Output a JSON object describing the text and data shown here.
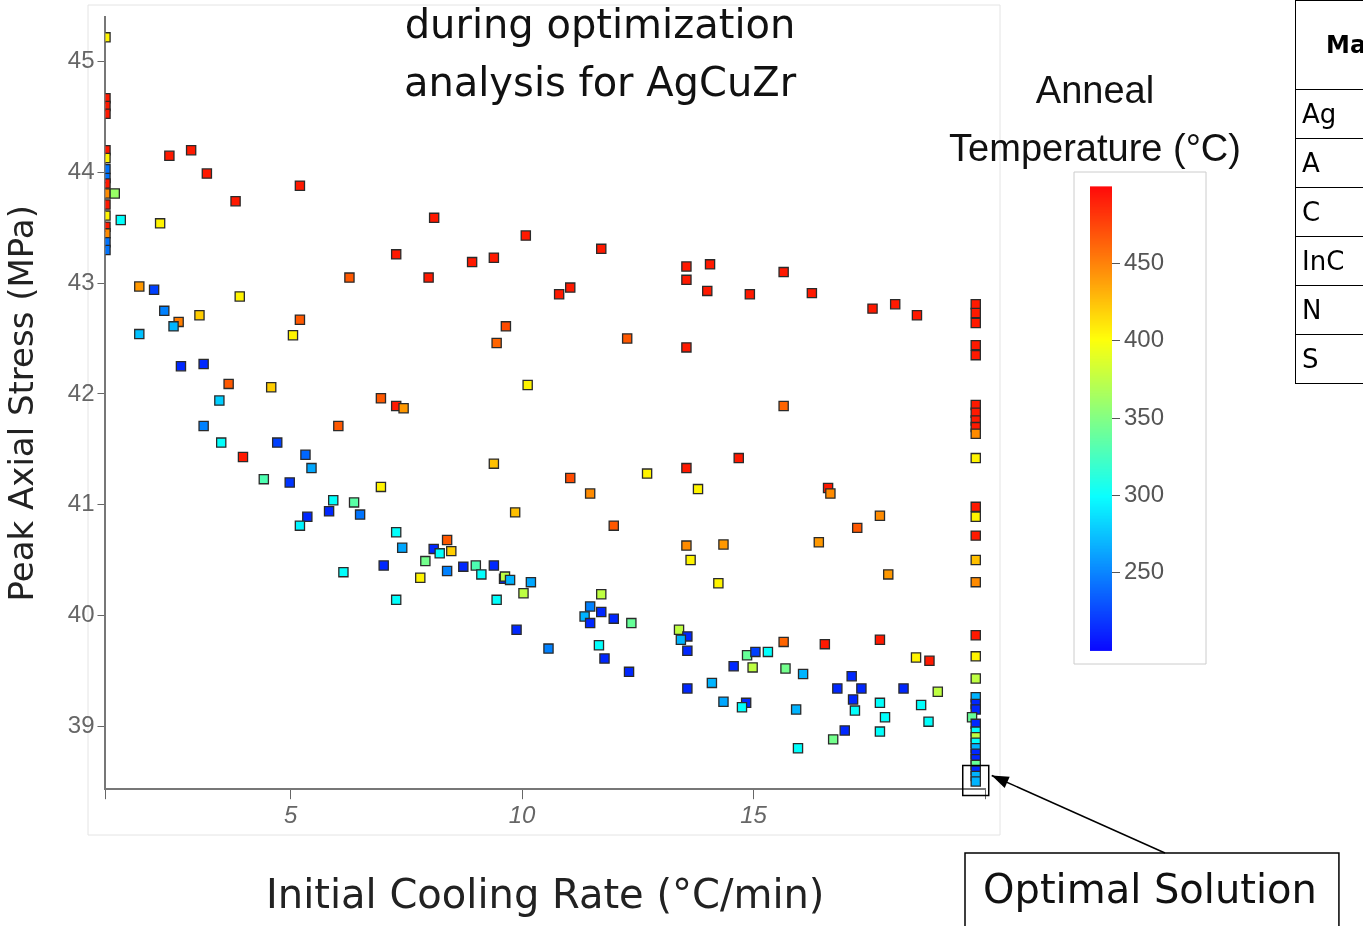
{
  "chart_data": {
    "type": "scatter",
    "title": "during optimization analysis for AgCuZr",
    "xlabel": "Initial Cooling Rate (°C/min)",
    "ylabel": "Peak Axial Stress (MPa)",
    "clabel": "Anneal Temperature (°C)",
    "marker": "square",
    "grid": false,
    "xlim": [
      1,
      20
    ],
    "xticks": [
      {
        "value": 1,
        "label": null
      },
      5,
      10,
      15,
      {
        "value": 20,
        "label": null
      }
    ],
    "ylim": [
      38.43,
      45.4
    ],
    "yticks": [
      39,
      40,
      41,
      42,
      43,
      44,
      45
    ],
    "clim": [
      200,
      500
    ],
    "cticks": [
      250,
      300,
      350,
      400,
      450
    ],
    "x": [
      1,
      1,
      1,
      1,
      1,
      1,
      1,
      1,
      1,
      1,
      1.2,
      1,
      1,
      1.33,
      1,
      1,
      1,
      1,
      2.38,
      2.85,
      3.19,
      3.81,
      5.2,
      2.18,
      6.27,
      1.73,
      2.05,
      3.9,
      2.27,
      2.58,
      2.47,
      3.03,
      5.2,
      5.05,
      1.73,
      2.63,
      3.12,
      3.66,
      4.58,
      3.46,
      6.95,
      3.12,
      3.5,
      3.97,
      4.71,
      6.03,
      5.32,
      5.45,
      4.42,
      4.98,
      6.95,
      5.92,
      6.37,
      5.83,
      6.5,
      5.36,
      5.2,
      6.14,
      7.01,
      8.1,
      10.08,
      11.71,
      7.28,
      8.92,
      9.39,
      7.98,
      11.04,
      10.8,
      13.55,
      13.55,
      14.0,
      14.06,
      9.65,
      9.45,
      12.27,
      13.55,
      10.12,
      7.28,
      7.44,
      9.39,
      11.04,
      12.7,
      13.55,
      13.8,
      14.92,
      15.65,
      16.26,
      17.57,
      18.06,
      18.53,
      15.65,
      14.68,
      16.61,
      16.66,
      17.73,
      17.24,
      16.41,
      14.35,
      14.24,
      17.91,
      13.55,
      13.64,
      11.47,
      11.98,
      9.85,
      15.65,
      16.54,
      17.73,
      18.51,
      18.8,
      14.86,
      15.04,
      15.31,
      14.57,
      14.98,
      15.69,
      16.07,
      14.1,
      17.12,
      16.81,
      17.33,
      18.24,
      18.98,
      14.35,
      14.84,
      14.75,
      17.15,
      17.19,
      17.73,
      18.62,
      17.84,
      18.78,
      15.92,
      16.97,
      16.72,
      17.73,
      15.96,
      7.28,
      7.41,
      8.38,
      8.09,
      8.22,
      8.47,
      7.91,
      7.8,
      8.38,
      8.73,
      9.0,
      9.12,
      9.39,
      9.61,
      9.63,
      9.74,
      10.19,
      10.03,
      7.28,
      9.45,
      9.88,
      10.57,
      11.71,
      11.47,
      11.71,
      11.35,
      11.47,
      11.98,
      12.36,
      11.66,
      11.78,
      12.31,
      13.39,
      13.57,
      13.43,
      13.57,
      13.57,
      19.8,
      19.8,
      19.8,
      19.8,
      19.8,
      19.8,
      19.8,
      19.8,
      19.8,
      19.8,
      19.8,
      19.8,
      19.8,
      19.8,
      19.8,
      19.8,
      19.8,
      19.8,
      19.8,
      19.8,
      19.8,
      19.8,
      19.72,
      19.8,
      19.8,
      19.8,
      19.8,
      19.8,
      19.8,
      19.8,
      19.8,
      19.8,
      19.8,
      19.8
    ],
    "values": [
      45.22,
      44.67,
      44.6,
      44.53,
      44.2,
      44.13,
      44.03,
      43.95,
      43.9,
      43.81,
      43.81,
      43.71,
      43.61,
      43.57,
      43.51,
      43.45,
      43.37,
      43.3,
      44.15,
      44.2,
      43.99,
      43.74,
      43.88,
      43.54,
      43.05,
      42.97,
      42.94,
      42.88,
      42.75,
      42.65,
      42.61,
      42.71,
      42.67,
      42.53,
      42.54,
      42.25,
      42.27,
      42.09,
      42.06,
      41.94,
      41.96,
      41.71,
      41.56,
      41.43,
      41.56,
      41.71,
      41.45,
      41.33,
      41.23,
      41.2,
      41.16,
      41.04,
      41.02,
      40.94,
      40.91,
      40.89,
      40.81,
      40.39,
      40.45,
      43.59,
      43.43,
      43.31,
      43.26,
      43.19,
      43.23,
      43.05,
      42.96,
      42.9,
      43.15,
      43.03,
      42.93,
      43.17,
      42.61,
      42.46,
      42.5,
      42.42,
      42.08,
      41.89,
      41.87,
      41.37,
      41.24,
      41.28,
      41.33,
      41.14,
      42.9,
      43.1,
      42.91,
      42.77,
      42.81,
      42.71,
      41.89,
      41.42,
      41.15,
      41.1,
      40.9,
      40.79,
      40.66,
      40.64,
      40.29,
      40.37,
      40.63,
      40.5,
      41.1,
      40.81,
      40.93,
      39.76,
      39.74,
      39.78,
      39.62,
      39.59,
      39.64,
      39.67,
      39.67,
      39.54,
      39.53,
      39.52,
      39.47,
      39.39,
      39.45,
      39.34,
      39.34,
      39.34,
      39.31,
      39.22,
      39.21,
      39.17,
      39.24,
      39.14,
      39.21,
      39.19,
      39.08,
      39.04,
      39.15,
      38.96,
      38.88,
      38.95,
      38.8,
      40.75,
      40.61,
      40.68,
      40.6,
      40.56,
      40.58,
      40.49,
      40.34,
      40.4,
      40.44,
      40.45,
      40.37,
      40.45,
      40.33,
      40.35,
      40.32,
      40.3,
      40.2,
      40.14,
      40.14,
      39.87,
      39.7,
      40.19,
      40.08,
      40.03,
      39.99,
      39.93,
      39.97,
      39.93,
      39.73,
      39.61,
      39.49,
      39.87,
      39.81,
      39.78,
      39.68,
      39.34,
      42.81,
      42.73,
      42.64,
      42.44,
      42.35,
      41.9,
      41.83,
      41.76,
      41.7,
      41.64,
      41.42,
      40.98,
      40.89,
      40.72,
      40.5,
      40.3,
      39.82,
      39.63,
      39.43,
      39.26,
      39.2,
      39.15,
      39.08,
      39.02,
      38.95,
      38.9,
      38.85,
      38.8,
      38.75,
      38.7,
      38.65,
      38.6,
      38.55,
      38.5
    ],
    "cvalues": [
      405,
      490,
      490,
      490,
      490,
      405,
      245,
      245,
      490,
      445,
      360,
      490,
      405,
      300,
      490,
      445,
      245,
      245,
      490,
      490,
      490,
      490,
      490,
      405,
      465,
      440,
      225,
      405,
      250,
      450,
      270,
      420,
      465,
      405,
      275,
      215,
      215,
      465,
      420,
      280,
      465,
      250,
      300,
      490,
      225,
      465,
      240,
      265,
      330,
      220,
      405,
      300,
      335,
      215,
      245,
      215,
      295,
      300,
      215,
      490,
      490,
      490,
      490,
      490,
      490,
      490,
      490,
      490,
      490,
      490,
      490,
      490,
      470,
      460,
      465,
      490,
      405,
      490,
      440,
      425,
      470,
      405,
      490,
      405,
      490,
      490,
      490,
      490,
      490,
      490,
      460,
      490,
      490,
      445,
      445,
      465,
      440,
      440,
      405,
      440,
      445,
      405,
      445,
      465,
      425,
      460,
      490,
      490,
      405,
      490,
      340,
      225,
      300,
      215,
      375,
      345,
      270,
      270,
      215,
      215,
      215,
      215,
      375,
      265,
      215,
      300,
      215,
      300,
      300,
      300,
      300,
      300,
      270,
      215,
      345,
      300,
      300,
      300,
      265,
      465,
      215,
      300,
      420,
      345,
      405,
      250,
      215,
      330,
      300,
      215,
      215,
      375,
      270,
      265,
      375,
      300,
      300,
      215,
      250,
      375,
      250,
      215,
      270,
      215,
      215,
      340,
      300,
      215,
      215,
      375,
      215,
      270,
      215,
      215,
      490,
      490,
      490,
      490,
      490,
      490,
      490,
      490,
      490,
      445,
      405,
      490,
      405,
      490,
      425,
      445,
      490,
      405,
      375,
      270,
      215,
      215,
      340,
      215,
      300,
      375,
      300,
      270,
      215,
      215,
      340,
      215,
      270,
      270
    ],
    "annotations": [
      {
        "text": "Optimal Solution",
        "x": 19.8,
        "y": 38.5
      },
      "Ma",
      "Ag",
      "A",
      "C",
      "InC",
      "N",
      "S"
    ]
  }
}
